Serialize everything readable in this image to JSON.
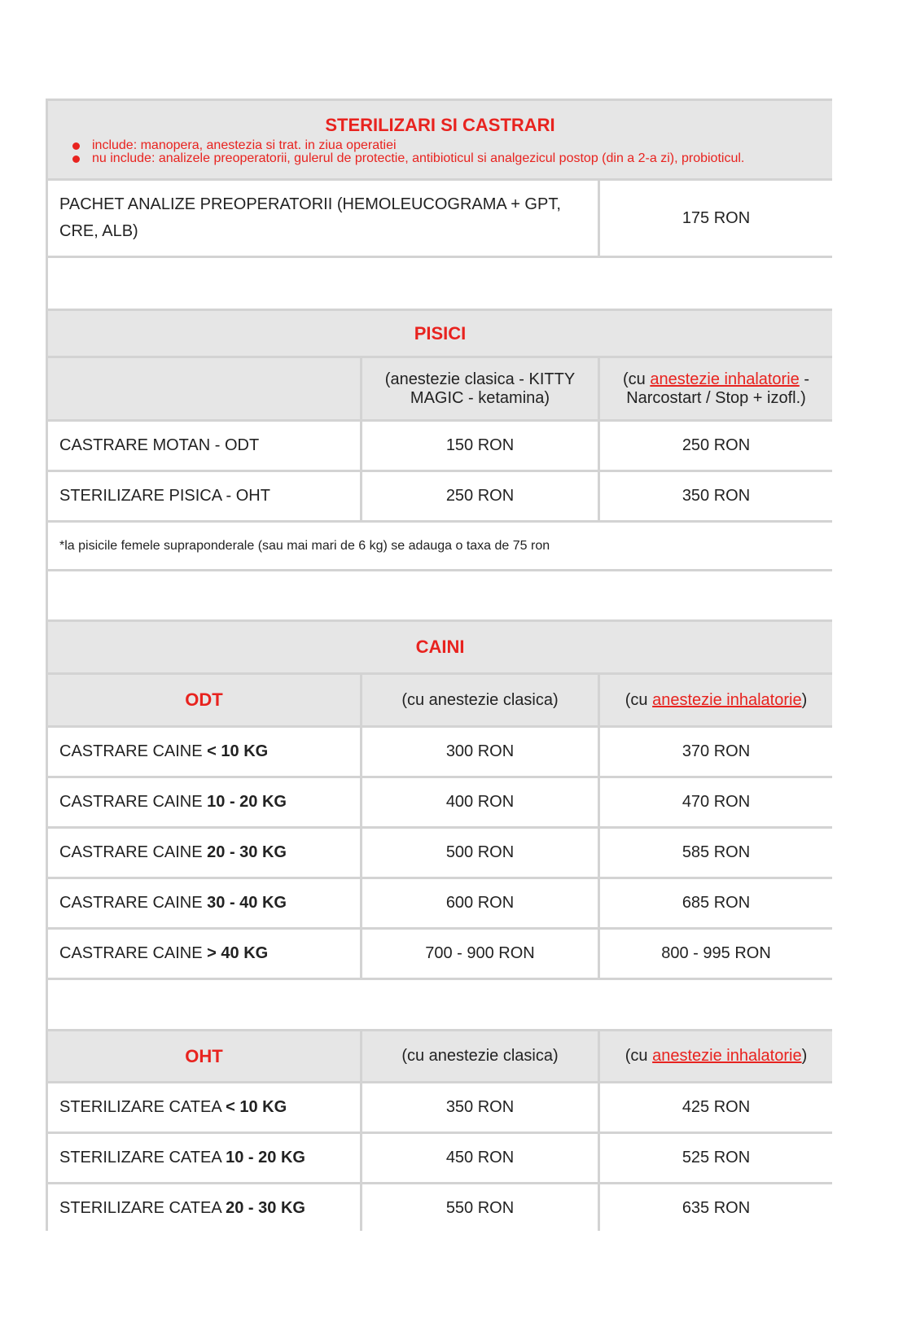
{
  "title": "STERILIZARI SI CASTRARI",
  "bullets": [
    "include: manopera, anestezia si trat. in ziua operatiei",
    "nu include: analizele preoperatorii, gulerul de protectie, antibioticul si analgezicul postop (din a 2-a zi), probioticul."
  ],
  "package": {
    "label": "PACHET ANALIZE PREOPERATORII (HEMOLEUCOGRAMA + GPT, CRE, ALB)",
    "price": "175 RON"
  },
  "cats": {
    "heading": "PISICI",
    "col1": "(anestezie clasica - KITTY MAGIC - ketamina)",
    "col2_prefix": "(cu ",
    "col2_link": "anestezie inhalatorie",
    "col2_suffix": " - Narcostart / Stop + izofl.)",
    "rows": [
      {
        "label": "CASTRARE MOTAN - ODT",
        "classic": "150 RON",
        "inhal": "250 RON"
      },
      {
        "label": "STERILIZARE PISICA - OHT",
        "classic": "250 RON",
        "inhal": "350 RON"
      }
    ],
    "note": "*la pisicile femele supraponderale (sau mai mari de 6 kg) se adauga o taxa de 75 ron"
  },
  "dogs": {
    "heading": "CAINI",
    "col1": "(cu anestezie clasica)",
    "col2_prefix": "(cu ",
    "col2_link": "anestezie inhalatorie",
    "col2_suffix": ")",
    "odt": {
      "heading": "ODT",
      "rows": [
        {
          "label": "CASTRARE CAINE ",
          "weight": " < 10 KG",
          "classic": "300 RON",
          "inhal": "370 RON"
        },
        {
          "label": "CASTRARE CAINE ",
          "weight": "10 - 20 KG",
          "classic": "400 RON",
          "inhal": "470 RON"
        },
        {
          "label": "CASTRARE CAINE ",
          "weight": "20 - 30 KG",
          "classic": "500 RON",
          "inhal": "585 RON"
        },
        {
          "label": "CASTRARE CAINE ",
          "weight": "30 - 40 KG",
          "classic": "600 RON",
          "inhal": "685 RON"
        },
        {
          "label": "CASTRARE CAINE ",
          "weight": "> 40 KG",
          "classic": "700 - 900 RON",
          "inhal": "800 - 995 RON"
        }
      ]
    },
    "oht": {
      "heading": "OHT",
      "rows": [
        {
          "label": "STERILIZARE CATEA ",
          "weight": "< 10 KG",
          "classic": "350 RON",
          "inhal": "425 RON"
        },
        {
          "label": "STERILIZARE CATEA ",
          "weight": "10 - 20 KG",
          "classic": "450 RON",
          "inhal": "525 RON"
        },
        {
          "label": "STERILIZARE CATEA ",
          "weight": "20 - 30 KG",
          "classic": "550 RON",
          "inhal": "635 RON"
        }
      ]
    }
  }
}
